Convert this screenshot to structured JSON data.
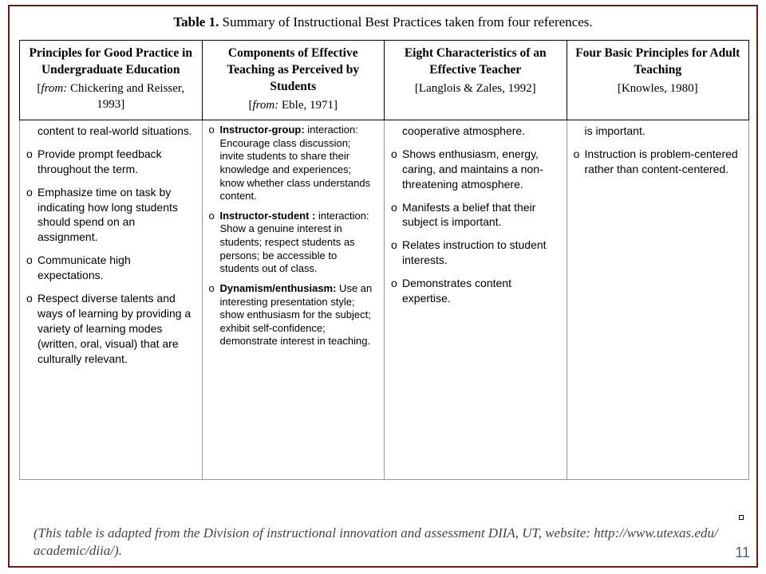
{
  "colors": {
    "frame_border": "#6b1a1a",
    "cell_border_header": "#000000",
    "cell_border_body": "#999999",
    "text": "#000000",
    "footnote": "#444444",
    "pagenum": "#4b5f7a",
    "background": "#ffffff"
  },
  "typography": {
    "serif": "Times New Roman",
    "sans": "Arial",
    "caption_size_pt": 13,
    "header_size_pt": 12,
    "body_size_pt": 10.5,
    "footnote_size_pt": 13
  },
  "caption": {
    "label": "Table 1.",
    "text": "Summary of Instructional Best Practices taken from four references."
  },
  "bracket_mark": "]",
  "columns": [
    {
      "title": "Principles for Good Practice in Undergraduate Education",
      "source_prefix": "[from: ",
      "source_body": "Chickering and Reisser, 1993",
      "source_suffix": "]",
      "source_italic_prefix": true,
      "width_pct": 25
    },
    {
      "title": "Components of Effective Teaching as Perceived by Students",
      "source_prefix": "[from: ",
      "source_body": "Eble, 1971",
      "source_suffix": "]",
      "source_italic_prefix": true,
      "width_pct": 25
    },
    {
      "title": "Eight Characteristics of an Effective Teacher",
      "source_prefix": "[",
      "source_body": "Langlois & Zales, 1992",
      "source_suffix": "]",
      "source_italic_prefix": false,
      "width_pct": 25
    },
    {
      "title": "Four Basic Principles for Adult Teaching",
      "source_prefix": "[",
      "source_body": "Knowles, 1980",
      "source_suffix": "]",
      "source_italic_prefix": false,
      "width_pct": 25
    }
  ],
  "cells": {
    "c0": [
      {
        "text": "content to real-world situations."
      },
      {
        "text": "Provide prompt feedback throughout the term."
      },
      {
        "text": "Emphasize time on task by indicating how long students should spend on an assignment."
      },
      {
        "text": "Communicate high expectations."
      },
      {
        "text": "Respect diverse talents and ways of learning by providing a variety of learning modes (written, oral, visual) that are culturally relevant."
      }
    ],
    "c1": [
      {
        "lead": "Instructor-group:",
        "text": " interaction: Encourage class discussion; invite students to share their knowledge and experiences; know whether class understands content."
      },
      {
        "lead": "Instructor-student :",
        "text": " interaction: Show a genuine interest in students; respect students as persons; be accessible to students out of class."
      },
      {
        "lead": "Dynamism/enthusiasm:",
        "text": " Use an interesting presentation style; show enthusiasm for the subject; exhibit self-confidence; demonstrate interest in teaching."
      }
    ],
    "c2": [
      {
        "text": "cooperative atmosphere."
      },
      {
        "text": "Shows enthusiasm, energy, caring, and maintains a non-threatening atmosphere."
      },
      {
        "text": "Manifests a belief that their subject is important."
      },
      {
        "text": "Relates instruction to student interests."
      },
      {
        "text": "Demonstrates content expertise."
      }
    ],
    "c3": [
      {
        "text": "is important."
      },
      {
        "text": "Instruction is problem-centered rather than content-centered."
      }
    ]
  },
  "footnote": "(This table is adapted from the Division of instructional innovation and assessment DIIA, UT, website: http://www.utexas.edu/ academic/diia/).",
  "page_number": "11"
}
